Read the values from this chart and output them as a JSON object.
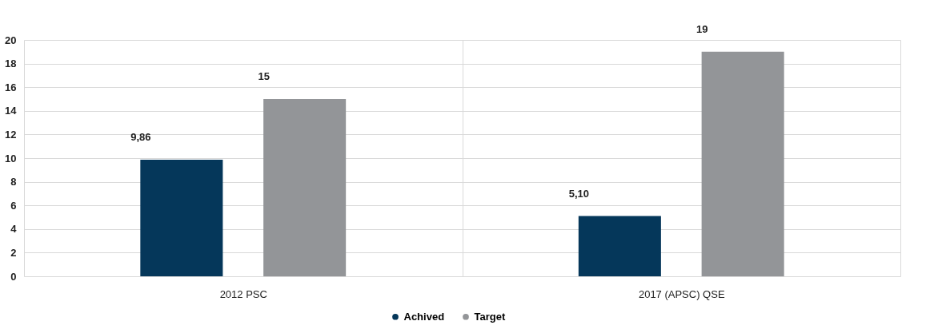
{
  "chart_data": {
    "type": "bar",
    "categories": [
      "2012 PSC",
      "2017 (APSC) QSE"
    ],
    "series": [
      {
        "name": "Achived",
        "color": "#05375a",
        "values": [
          9.86,
          5.1
        ],
        "value_labels": [
          "9,86",
          "5,10"
        ]
      },
      {
        "name": "Target",
        "color": "#939598",
        "values": [
          15,
          19
        ],
        "value_labels": [
          "15",
          "19"
        ]
      }
    ],
    "ylim": [
      0,
      20
    ],
    "yticks": [
      0,
      2,
      4,
      6,
      8,
      10,
      12,
      14,
      16,
      18,
      20
    ],
    "grid": true,
    "legend": "bottom"
  }
}
